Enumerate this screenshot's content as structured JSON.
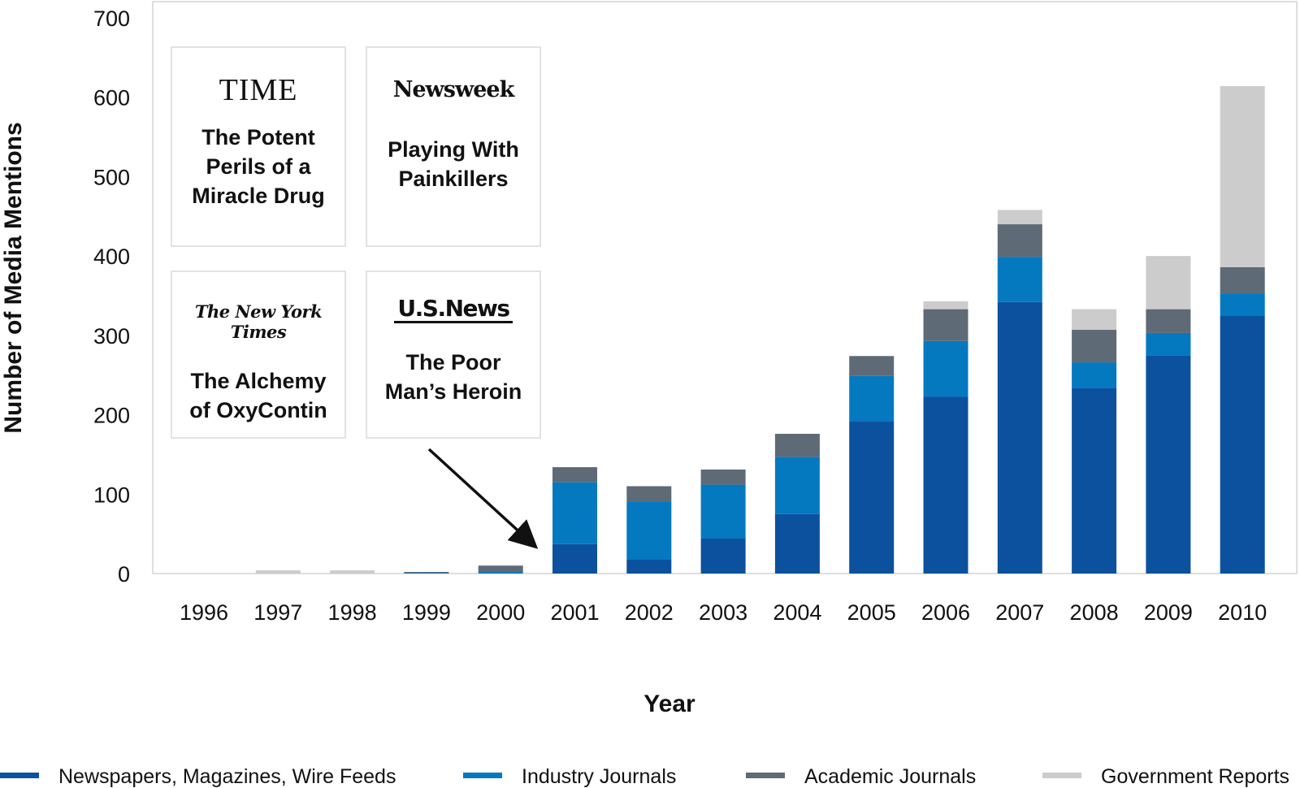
{
  "chart_data": {
    "type": "bar",
    "stacked": true,
    "categories": [
      "1996",
      "1997",
      "1998",
      "1999",
      "2000",
      "2001",
      "2002",
      "2003",
      "2004",
      "2005",
      "2006",
      "2007",
      "2008",
      "2009",
      "2010"
    ],
    "series": [
      {
        "name": "Newspapers, Magazines, Wire Feeds",
        "color": "#0c519e",
        "values": [
          0,
          0,
          0,
          0,
          0,
          37,
          18,
          44,
          75,
          192,
          223,
          342,
          234,
          275,
          325
        ]
      },
      {
        "name": "Industry Journals",
        "color": "#0479c0",
        "values": [
          0,
          0,
          0,
          1,
          3,
          78,
          73,
          68,
          72,
          57,
          70,
          57,
          32,
          28,
          28
        ]
      },
      {
        "name": "Academic Journals",
        "color": "#5e6a75",
        "values": [
          0,
          0,
          0,
          1,
          7,
          19,
          19,
          19,
          29,
          25,
          40,
          41,
          41,
          30,
          33
        ]
      },
      {
        "name": "Government Reports",
        "color": "#cccccc",
        "values": [
          0,
          4,
          4,
          0,
          0,
          0,
          0,
          0,
          0,
          0,
          10,
          18,
          26,
          67,
          228
        ]
      }
    ],
    "xlabel": "Year",
    "ylabel": "Number of Media Mentions",
    "ylim": [
      0,
      700
    ],
    "yticks": [
      0,
      100,
      200,
      300,
      400,
      500,
      600,
      700
    ],
    "grid": false,
    "legend_position": "bottom",
    "annotation": "arrow pointing to 2001"
  },
  "insets": [
    {
      "publication": "TIME",
      "headline_lines": [
        "The Potent",
        "Perils of a",
        "Miracle Drug"
      ]
    },
    {
      "publication": "Newsweek",
      "headline_lines": [
        "Playing With",
        "Painkillers"
      ]
    },
    {
      "publication": "The New York Times",
      "headline_lines": [
        "The Alchemy",
        "of OxyContin"
      ]
    },
    {
      "publication": "U.S.News",
      "headline_lines": [
        "The Poor",
        "Man’s Heroin"
      ]
    }
  ]
}
